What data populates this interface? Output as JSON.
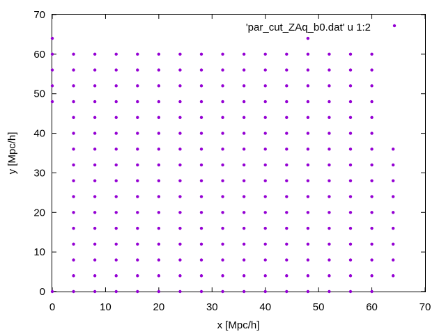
{
  "chart_data": {
    "type": "scatter",
    "title": "",
    "xlabel": "x [Mpc/h]",
    "ylabel": "y [Mpc/h]",
    "xlim": [
      0,
      70
    ],
    "ylim": [
      0,
      70
    ],
    "x_ticks": [
      "0",
      "10",
      "20",
      "30",
      "40",
      "50",
      "60",
      "70"
    ],
    "y_ticks": [
      "0",
      "10",
      "20",
      "30",
      "40",
      "50",
      "60",
      "70"
    ],
    "grid": false,
    "legend_position": "top-right",
    "series": [
      {
        "name": "'par_cut_ZAq_b0.dat' u 1:2",
        "color": "#9400d3",
        "marker": "point",
        "points": [
          [
            0,
            0
          ],
          [
            0,
            48
          ],
          [
            0,
            52
          ],
          [
            0,
            56
          ],
          [
            0,
            60
          ],
          [
            0,
            64
          ],
          [
            4,
            0
          ],
          [
            4,
            4
          ],
          [
            4,
            8
          ],
          [
            4,
            12
          ],
          [
            4,
            16
          ],
          [
            4,
            20
          ],
          [
            4,
            24
          ],
          [
            4,
            28
          ],
          [
            4,
            32
          ],
          [
            4,
            36
          ],
          [
            4,
            40
          ],
          [
            4,
            44
          ],
          [
            4,
            48
          ],
          [
            4,
            52
          ],
          [
            4,
            56
          ],
          [
            4,
            60
          ],
          [
            8,
            0
          ],
          [
            8,
            4
          ],
          [
            8,
            8
          ],
          [
            8,
            12
          ],
          [
            8,
            16
          ],
          [
            8,
            20
          ],
          [
            8,
            24
          ],
          [
            8,
            28
          ],
          [
            8,
            32
          ],
          [
            8,
            36
          ],
          [
            8,
            40
          ],
          [
            8,
            44
          ],
          [
            8,
            48
          ],
          [
            8,
            52
          ],
          [
            8,
            56
          ],
          [
            8,
            60
          ],
          [
            12,
            0
          ],
          [
            12,
            4
          ],
          [
            12,
            8
          ],
          [
            12,
            12
          ],
          [
            12,
            16
          ],
          [
            12,
            20
          ],
          [
            12,
            24
          ],
          [
            12,
            28
          ],
          [
            12,
            32
          ],
          [
            12,
            36
          ],
          [
            12,
            40
          ],
          [
            12,
            44
          ],
          [
            12,
            48
          ],
          [
            12,
            52
          ],
          [
            12,
            56
          ],
          [
            12,
            60
          ],
          [
            16,
            0
          ],
          [
            16,
            4
          ],
          [
            16,
            8
          ],
          [
            16,
            12
          ],
          [
            16,
            16
          ],
          [
            16,
            20
          ],
          [
            16,
            24
          ],
          [
            16,
            28
          ],
          [
            16,
            32
          ],
          [
            16,
            36
          ],
          [
            16,
            40
          ],
          [
            16,
            44
          ],
          [
            16,
            48
          ],
          [
            16,
            52
          ],
          [
            16,
            56
          ],
          [
            16,
            60
          ],
          [
            20,
            0
          ],
          [
            20,
            4
          ],
          [
            20,
            8
          ],
          [
            20,
            12
          ],
          [
            20,
            16
          ],
          [
            20,
            20
          ],
          [
            20,
            24
          ],
          [
            20,
            28
          ],
          [
            20,
            32
          ],
          [
            20,
            36
          ],
          [
            20,
            40
          ],
          [
            20,
            44
          ],
          [
            20,
            48
          ],
          [
            20,
            52
          ],
          [
            20,
            56
          ],
          [
            20,
            60
          ],
          [
            24,
            0
          ],
          [
            24,
            4
          ],
          [
            24,
            8
          ],
          [
            24,
            12
          ],
          [
            24,
            16
          ],
          [
            24,
            20
          ],
          [
            24,
            24
          ],
          [
            24,
            28
          ],
          [
            24,
            32
          ],
          [
            24,
            36
          ],
          [
            24,
            40
          ],
          [
            24,
            44
          ],
          [
            24,
            48
          ],
          [
            24,
            52
          ],
          [
            24,
            56
          ],
          [
            24,
            60
          ],
          [
            28,
            0
          ],
          [
            28,
            4
          ],
          [
            28,
            8
          ],
          [
            28,
            12
          ],
          [
            28,
            16
          ],
          [
            28,
            20
          ],
          [
            28,
            24
          ],
          [
            28,
            28
          ],
          [
            28,
            32
          ],
          [
            28,
            36
          ],
          [
            28,
            40
          ],
          [
            28,
            44
          ],
          [
            28,
            48
          ],
          [
            28,
            52
          ],
          [
            28,
            56
          ],
          [
            28,
            60
          ],
          [
            32,
            0
          ],
          [
            32,
            4
          ],
          [
            32,
            8
          ],
          [
            32,
            12
          ],
          [
            32,
            16
          ],
          [
            32,
            20
          ],
          [
            32,
            24
          ],
          [
            32,
            28
          ],
          [
            32,
            32
          ],
          [
            32,
            36
          ],
          [
            32,
            40
          ],
          [
            32,
            44
          ],
          [
            32,
            48
          ],
          [
            32,
            52
          ],
          [
            32,
            56
          ],
          [
            32,
            60
          ],
          [
            36,
            0
          ],
          [
            36,
            4
          ],
          [
            36,
            8
          ],
          [
            36,
            12
          ],
          [
            36,
            16
          ],
          [
            36,
            20
          ],
          [
            36,
            24
          ],
          [
            36,
            28
          ],
          [
            36,
            32
          ],
          [
            36,
            36
          ],
          [
            36,
            40
          ],
          [
            36,
            44
          ],
          [
            36,
            48
          ],
          [
            36,
            52
          ],
          [
            36,
            56
          ],
          [
            36,
            60
          ],
          [
            40,
            0
          ],
          [
            40,
            4
          ],
          [
            40,
            8
          ],
          [
            40,
            12
          ],
          [
            40,
            16
          ],
          [
            40,
            20
          ],
          [
            40,
            24
          ],
          [
            40,
            28
          ],
          [
            40,
            32
          ],
          [
            40,
            36
          ],
          [
            40,
            40
          ],
          [
            40,
            44
          ],
          [
            40,
            48
          ],
          [
            40,
            52
          ],
          [
            40,
            56
          ],
          [
            40,
            60
          ],
          [
            44,
            0
          ],
          [
            44,
            4
          ],
          [
            44,
            8
          ],
          [
            44,
            12
          ],
          [
            44,
            16
          ],
          [
            44,
            20
          ],
          [
            44,
            24
          ],
          [
            44,
            28
          ],
          [
            44,
            32
          ],
          [
            44,
            36
          ],
          [
            44,
            40
          ],
          [
            44,
            44
          ],
          [
            44,
            48
          ],
          [
            44,
            52
          ],
          [
            44,
            56
          ],
          [
            44,
            60
          ],
          [
            48,
            0
          ],
          [
            48,
            4
          ],
          [
            48,
            8
          ],
          [
            48,
            12
          ],
          [
            48,
            16
          ],
          [
            48,
            20
          ],
          [
            48,
            24
          ],
          [
            48,
            28
          ],
          [
            48,
            32
          ],
          [
            48,
            36
          ],
          [
            48,
            40
          ],
          [
            48,
            44
          ],
          [
            48,
            48
          ],
          [
            48,
            52
          ],
          [
            48,
            56
          ],
          [
            48,
            60
          ],
          [
            48,
            64
          ],
          [
            52,
            0
          ],
          [
            52,
            4
          ],
          [
            52,
            8
          ],
          [
            52,
            12
          ],
          [
            52,
            16
          ],
          [
            52,
            20
          ],
          [
            52,
            24
          ],
          [
            52,
            28
          ],
          [
            52,
            32
          ],
          [
            52,
            36
          ],
          [
            52,
            40
          ],
          [
            52,
            44
          ],
          [
            52,
            48
          ],
          [
            52,
            52
          ],
          [
            52,
            56
          ],
          [
            52,
            60
          ],
          [
            56,
            0
          ],
          [
            56,
            4
          ],
          [
            56,
            8
          ],
          [
            56,
            12
          ],
          [
            56,
            16
          ],
          [
            56,
            20
          ],
          [
            56,
            24
          ],
          [
            56,
            28
          ],
          [
            56,
            32
          ],
          [
            56,
            36
          ],
          [
            56,
            40
          ],
          [
            56,
            44
          ],
          [
            56,
            48
          ],
          [
            56,
            52
          ],
          [
            56,
            56
          ],
          [
            56,
            60
          ],
          [
            60,
            0
          ],
          [
            60,
            4
          ],
          [
            60,
            8
          ],
          [
            60,
            12
          ],
          [
            60,
            16
          ],
          [
            60,
            20
          ],
          [
            60,
            24
          ],
          [
            60,
            28
          ],
          [
            60,
            32
          ],
          [
            60,
            36
          ],
          [
            60,
            40
          ],
          [
            60,
            44
          ],
          [
            60,
            48
          ],
          [
            60,
            52
          ],
          [
            60,
            56
          ],
          [
            60,
            60
          ],
          [
            64,
            4
          ],
          [
            64,
            8
          ],
          [
            64,
            12
          ],
          [
            64,
            16
          ],
          [
            64,
            20
          ],
          [
            64,
            24
          ],
          [
            64,
            28
          ],
          [
            64,
            32
          ],
          [
            64,
            36
          ]
        ]
      }
    ]
  }
}
